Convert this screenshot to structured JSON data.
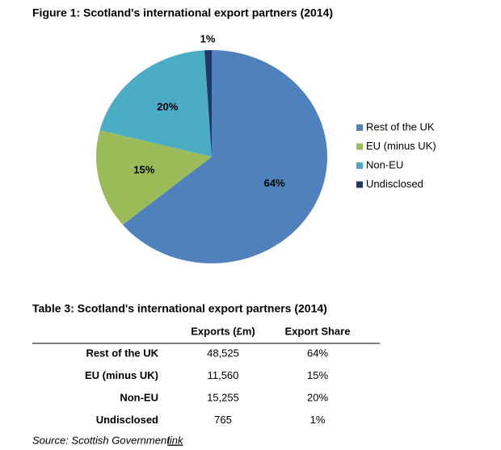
{
  "chart_data": {
    "type": "pie",
    "title": "Figure 1: Scotland's international export partners (2014)",
    "categories": [
      "Rest of the UK",
      "EU (minus UK)",
      "Non-EU",
      "Undisclosed"
    ],
    "values": [
      64,
      15,
      20,
      1
    ],
    "value_labels": [
      "64%",
      "15%",
      "20%",
      "1%"
    ],
    "colors": [
      "#4f81bd",
      "#9bbb59",
      "#4bacc6",
      "#1f3864"
    ],
    "legend": "right"
  },
  "table": {
    "title": "Table 3: Scotland's international export partners (2014)",
    "header": [
      "Exports (£m)",
      "Export Share"
    ],
    "rows": [
      [
        "Rest of the UK",
        "48,525",
        "64%"
      ],
      [
        "EU (minus UK)",
        "11,560",
        "15%"
      ],
      [
        "Non-EU",
        "15,255",
        "20%"
      ],
      [
        "Undisclosed",
        "765",
        "1%"
      ]
    ]
  },
  "source": {
    "text": "Source: Scottish Government",
    "link": "link"
  }
}
